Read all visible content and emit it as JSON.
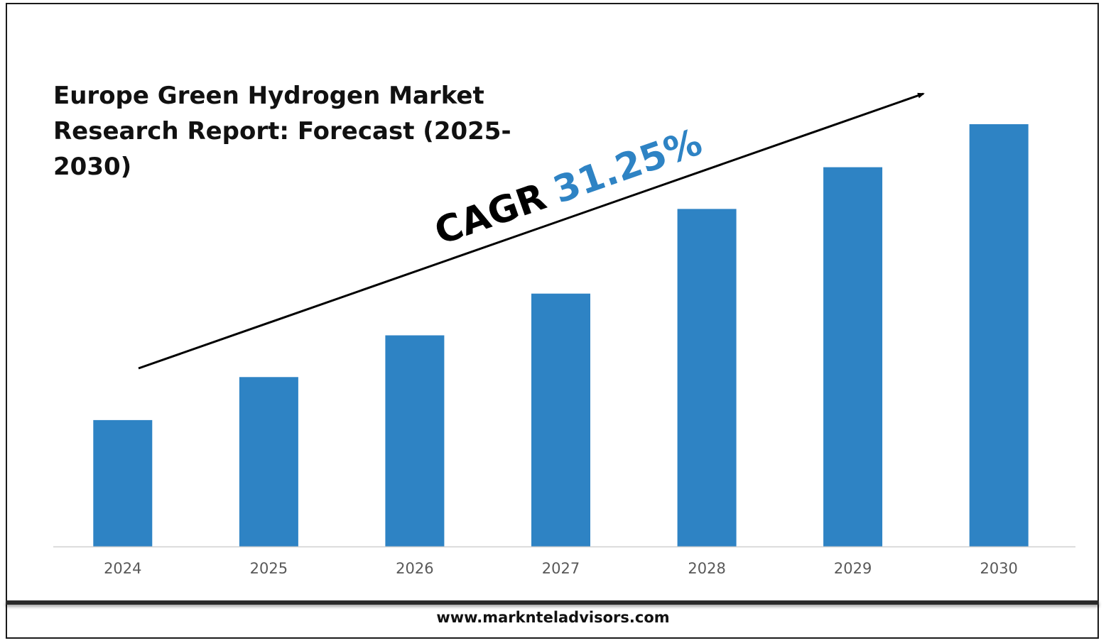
{
  "chart_data": {
    "type": "bar",
    "title": "Europe Green Hydrogen Market Research Report: Forecast (2025-2030)",
    "categories": [
      "2024",
      "2025",
      "2026",
      "2027",
      "2028",
      "2029",
      "2030"
    ],
    "values": [
      1.0,
      1.34,
      1.67,
      2.0,
      2.67,
      3.0,
      3.34
    ],
    "ylim": [
      0,
      3.5
    ],
    "grid": false,
    "legend": "none",
    "bar_color": "#2E83C4",
    "annotation": {
      "label": "CAGR",
      "value": "31.25%",
      "label_color": "#000000",
      "value_color": "#2E83C4"
    }
  },
  "footer": {
    "url": "www.marknteladvisors.com"
  }
}
